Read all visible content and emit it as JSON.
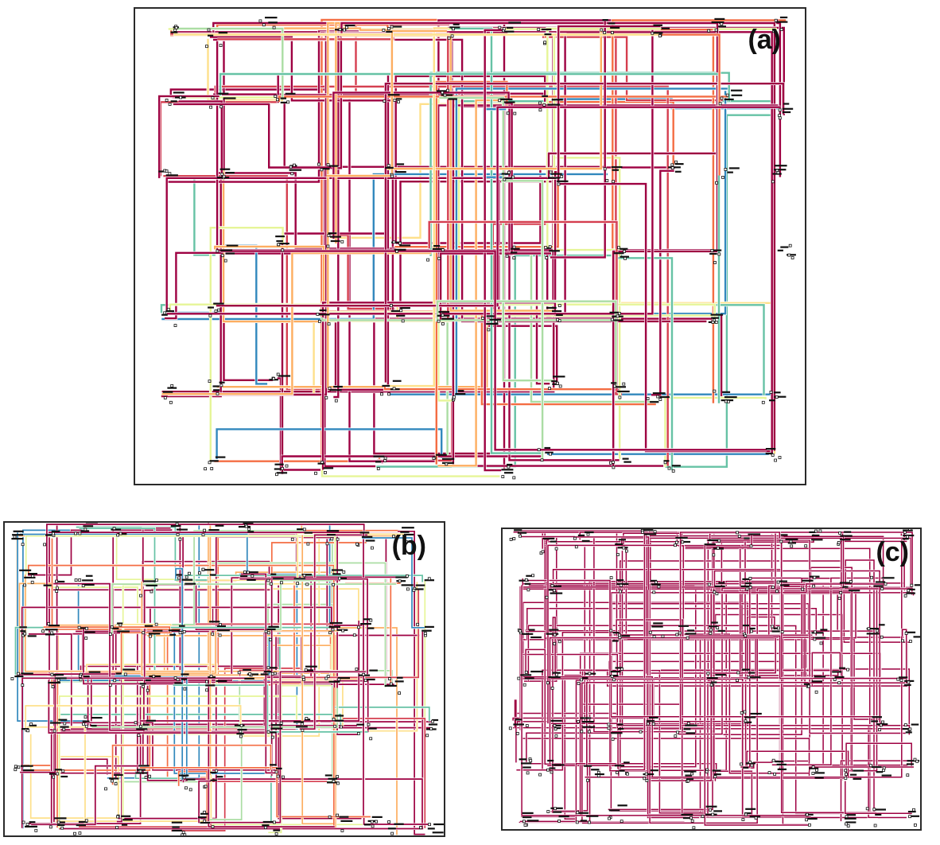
{
  "panels": [
    {
      "id": "a",
      "label": "(a)",
      "coloring": "multi-color"
    },
    {
      "id": "b",
      "label": "(b)",
      "coloring": "multi-color"
    },
    {
      "id": "c",
      "label": "(c)",
      "coloring": "single-color"
    }
  ],
  "colors": {
    "palette": [
      "#9e0142",
      "#d53e4f",
      "#f46d43",
      "#fdae61",
      "#fee08b",
      "#e6f598",
      "#abdda4",
      "#66c2a5",
      "#3288bd"
    ],
    "mono": "#9e0142",
    "node": "#111111",
    "frame": "#2a2a2a"
  }
}
